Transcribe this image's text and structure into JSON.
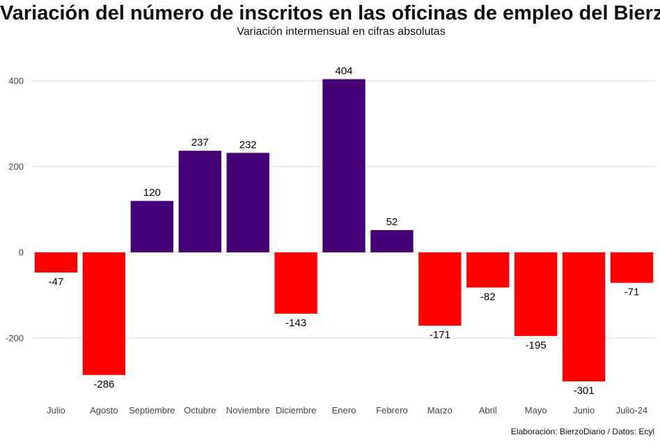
{
  "title": "Variación del número de inscritos en las oficinas de empleo del Bierzo",
  "subtitle": "Variación intermensual en cifras absolutas",
  "caption": "Elaboración: BierzoDiario / Datos: Ecyl",
  "colors": {
    "positive": "#460075",
    "negative": "#ff0000",
    "grid": "#d9d9d9"
  },
  "chart_data": {
    "type": "bar",
    "title": "Variación del número de inscritos en las oficinas de empleo del Bierzo",
    "subtitle": "Variación intermensual en cifras absolutas",
    "xlabel": "",
    "ylabel": "",
    "categories": [
      "Julio",
      "Agosto",
      "Septiembre",
      "Octubre",
      "Noviembre",
      "Diciembre",
      "Enero",
      "Febrero",
      "Marzo",
      "Abril",
      "Mayo",
      "Junio",
      "Julio-24"
    ],
    "values": [
      -47,
      -286,
      120,
      237,
      232,
      -143,
      404,
      52,
      -171,
      -82,
      -195,
      -301,
      -71
    ],
    "yticks": [
      -200,
      0,
      200,
      400
    ],
    "ylim": [
      -340,
      440
    ],
    "grid": true,
    "legend": "none"
  }
}
